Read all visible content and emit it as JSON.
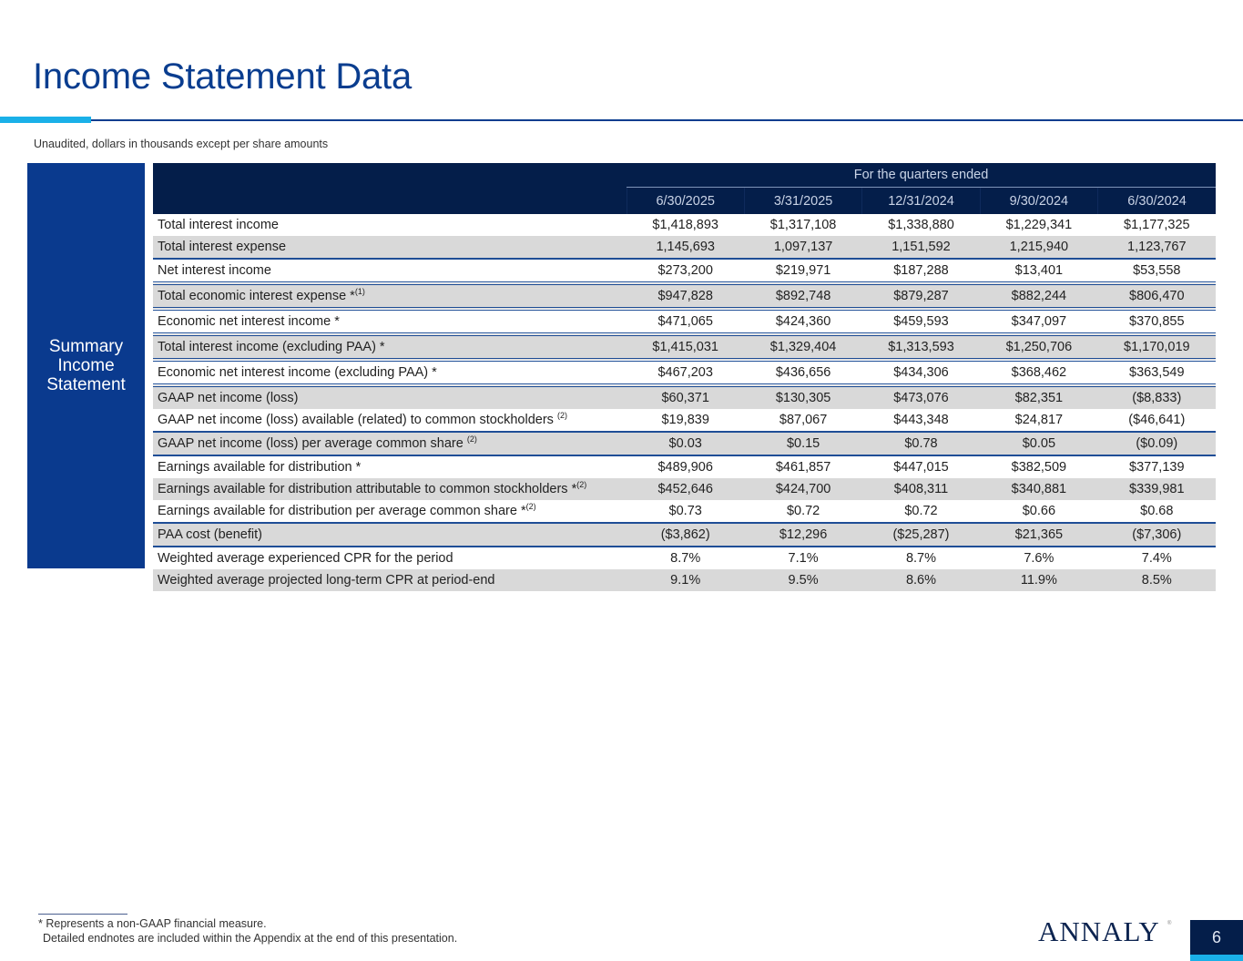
{
  "page": {
    "title": "Income Statement Data",
    "subtitle": "Unaudited, dollars in thousands except per share amounts",
    "side_label": [
      "Summary",
      "Income",
      "Statement"
    ],
    "page_number": "6",
    "logo_text": "ANNALY",
    "logo_mark": "®",
    "colors": {
      "title": "#0a3d8f",
      "accent": "#1ab0e8",
      "header_bg": "#041e4a",
      "side_bg": "#0a3a8e",
      "shade_row": "#d9d9d9",
      "separator": "#1f4e96"
    }
  },
  "table": {
    "group_header": "For the quarters ended",
    "columns": [
      "6/30/2025",
      "3/31/2025",
      "12/31/2024",
      "9/30/2024",
      "6/30/2024"
    ],
    "rows": [
      {
        "label": "Total interest income",
        "sup": "",
        "values": [
          "$1,418,893",
          "$1,317,108",
          "$1,338,880",
          "$1,229,341",
          "$1,177,325"
        ]
      },
      {
        "label": "Total interest expense",
        "sup": "",
        "values": [
          "1,145,693",
          "1,097,137",
          "1,151,592",
          "1,215,940",
          "1,123,767"
        ]
      },
      {
        "label": "Net interest income",
        "sup": "",
        "values": [
          "$273,200",
          "$219,971",
          "$187,288",
          "$13,401",
          "$53,558"
        ]
      },
      {
        "label": "Total economic interest expense *",
        "sup": "(1)",
        "values": [
          "$947,828",
          "$892,748",
          "$879,287",
          "$882,244",
          "$806,470"
        ]
      },
      {
        "label": "Economic net interest income *",
        "sup": "",
        "values": [
          "$471,065",
          "$424,360",
          "$459,593",
          "$347,097",
          "$370,855"
        ]
      },
      {
        "label": "Total interest income (excluding PAA) *",
        "sup": "",
        "values": [
          "$1,415,031",
          "$1,329,404",
          "$1,313,593",
          "$1,250,706",
          "$1,170,019"
        ]
      },
      {
        "label": "Economic net interest income (excluding PAA) *",
        "sup": "",
        "values": [
          "$467,203",
          "$436,656",
          "$434,306",
          "$368,462",
          "$363,549"
        ]
      },
      {
        "label": "GAAP net income (loss)",
        "sup": "",
        "values": [
          "$60,371",
          "$130,305",
          "$473,076",
          "$82,351",
          "($8,833)"
        ]
      },
      {
        "label": "GAAP net income (loss) available (related) to common stockholders ",
        "sup": "(2)",
        "values": [
          "$19,839",
          "$87,067",
          "$443,348",
          "$24,817",
          "($46,641)"
        ]
      },
      {
        "label": "GAAP net income (loss) per average common share ",
        "sup": "(2)",
        "values": [
          "$0.03",
          "$0.15",
          "$0.78",
          "$0.05",
          "($0.09)"
        ]
      },
      {
        "label": "Earnings available for distribution *",
        "sup": "",
        "values": [
          "$489,906",
          "$461,857",
          "$447,015",
          "$382,509",
          "$377,139"
        ]
      },
      {
        "label": "Earnings available for distribution attributable to common stockholders *",
        "sup": "(2)",
        "values": [
          "$452,646",
          "$424,700",
          "$408,311",
          "$340,881",
          "$339,981"
        ]
      },
      {
        "label": "Earnings available for distribution per average common share *",
        "sup": "(2)",
        "values": [
          "$0.73",
          "$0.72",
          "$0.72",
          "$0.66",
          "$0.68"
        ]
      },
      {
        "label": "PAA cost (benefit)",
        "sup": "",
        "values": [
          "($3,862)",
          "$12,296",
          "($25,287)",
          "$21,365",
          "($7,306)"
        ]
      },
      {
        "label": "Weighted average experienced CPR for the period",
        "sup": "",
        "values": [
          "8.7%",
          "7.1%",
          "8.7%",
          "7.6%",
          "7.4%"
        ]
      },
      {
        "label": "Weighted average projected long-term CPR at period-end",
        "sup": "",
        "values": [
          "9.1%",
          "9.5%",
          "8.6%",
          "11.9%",
          "8.5%"
        ]
      }
    ]
  },
  "footnotes": {
    "line1": "* Represents a non-GAAP financial measure.",
    "line2": "Detailed endnotes are included within the Appendix at the end of this presentation."
  }
}
